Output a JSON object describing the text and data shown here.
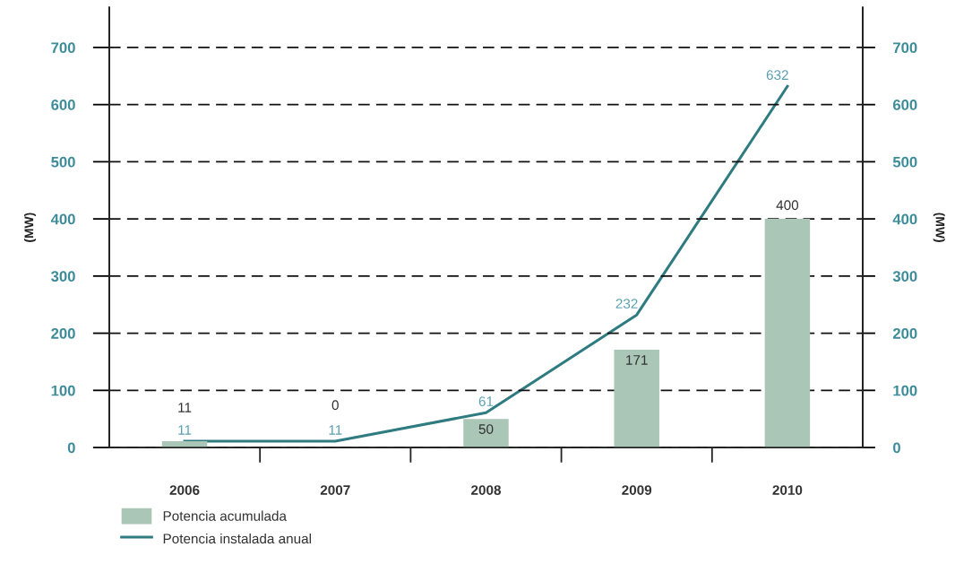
{
  "chart_data": {
    "type": "bar",
    "categories": [
      "2006",
      "2007",
      "2008",
      "2009",
      "2010"
    ],
    "series": [
      {
        "name": "Potencia acumulada",
        "color": "#a9c6b6",
        "values": [
          11,
          0,
          50,
          171,
          400
        ]
      },
      {
        "name": "Potencia instalada anual",
        "type": "line",
        "color": "#2e7b80",
        "values": [
          11,
          11,
          61,
          232,
          632
        ],
        "axis": "y2"
      }
    ],
    "ylabel": "(MW)",
    "y2label": "(MW)",
    "ylim": [
      0,
      770
    ],
    "yticks": [
      0,
      100,
      200,
      300,
      400,
      500,
      600,
      700
    ],
    "y2lim": [
      0,
      770
    ],
    "y2ticks": [
      0,
      100,
      200,
      300,
      400,
      500,
      600,
      700
    ],
    "grid": "y",
    "legend": "bottom left",
    "data_labels": true
  }
}
